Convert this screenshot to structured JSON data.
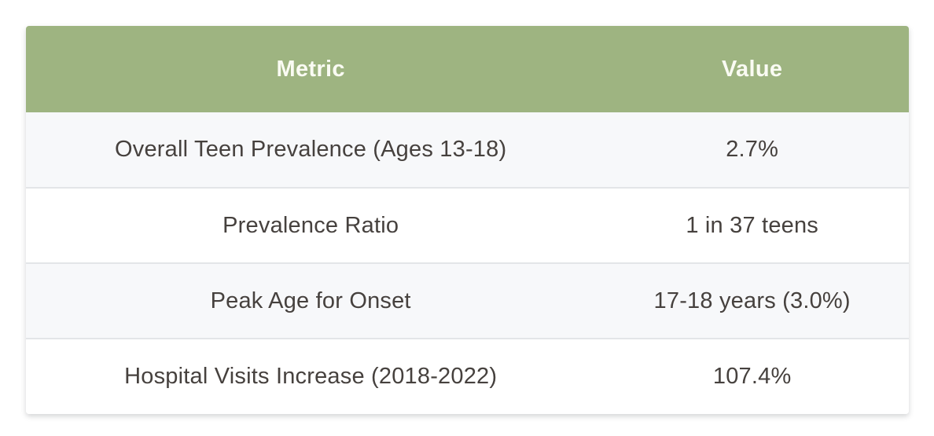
{
  "chart_data": {
    "type": "table",
    "columns": [
      "Metric",
      "Value"
    ],
    "rows": [
      [
        "Overall Teen Prevalence (Ages 13-18)",
        "2.7%"
      ],
      [
        "Prevalence Ratio",
        "1 in 37 teens"
      ],
      [
        "Peak Age for Onset",
        "17-18 years (3.0%)"
      ],
      [
        "Hospital Visits Increase (2018-2022)",
        "107.4%"
      ]
    ],
    "title": "",
    "legend": "none",
    "grid": "horizontal row separators only"
  },
  "table": {
    "headers": {
      "metric": "Metric",
      "value": "Value"
    },
    "rows": [
      {
        "metric": "Overall Teen Prevalence (Ages 13-18)",
        "value": "2.7%"
      },
      {
        "metric": "Prevalence Ratio",
        "value": "1 in 37 teens"
      },
      {
        "metric": "Peak Age for Onset",
        "value": "17-18 years (3.0%)"
      },
      {
        "metric": "Hospital Visits Increase (2018-2022)",
        "value": "107.4%"
      }
    ],
    "colors": {
      "header_bg": "#9eb481",
      "header_text": "#fafbf3",
      "row_alt_bg": "#f7f8fa",
      "row_bg": "#ffffff",
      "body_text": "#46413e",
      "row_border": "#e3e5e8",
      "page_bg": "#ffffff"
    }
  }
}
